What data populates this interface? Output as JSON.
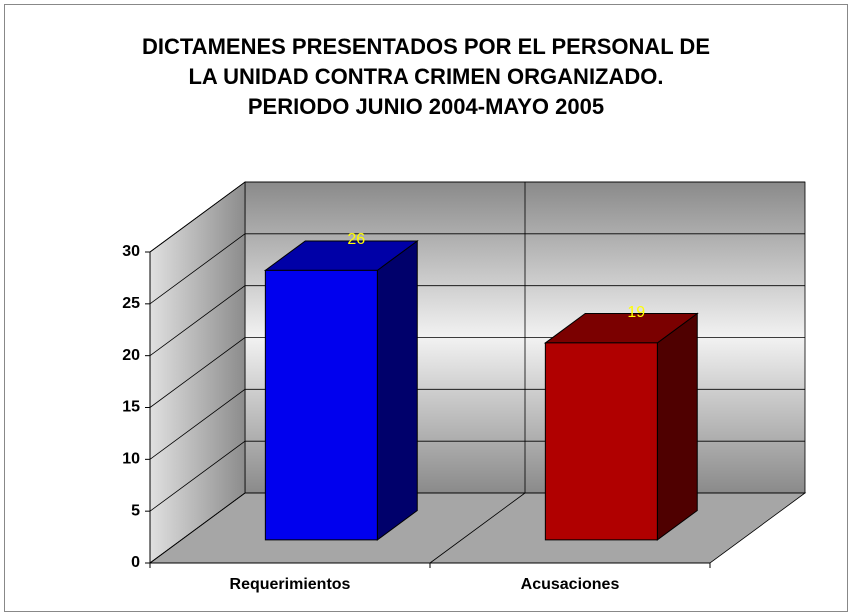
{
  "chart_data": {
    "type": "bar3d",
    "title": [
      "DICTAMENES PRESENTADOS POR EL PERSONAL DE",
      "LA UNIDAD CONTRA CRIMEN ORGANIZADO.",
      "PERIODO JUNIO 2004-MAYO 2005"
    ],
    "categories": [
      "Requerimientos",
      "Acusaciones"
    ],
    "values": [
      26,
      19
    ],
    "colors": [
      "#0000ee",
      "#b00000"
    ],
    "ylim": [
      0,
      30
    ],
    "yticks": [
      0,
      5,
      10,
      15,
      20,
      25,
      30
    ],
    "grid": true
  }
}
